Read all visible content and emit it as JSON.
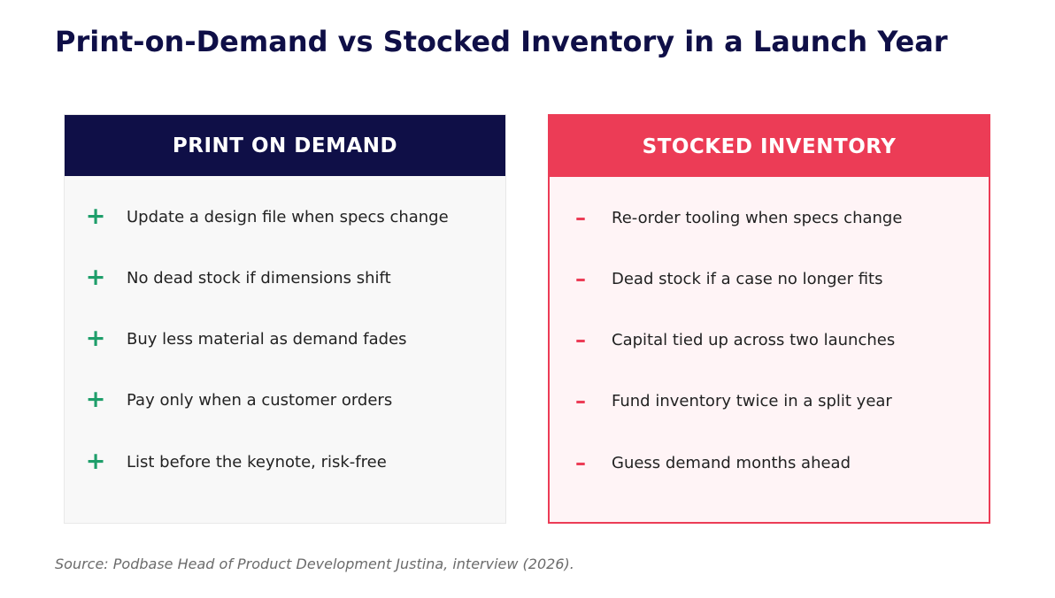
{
  "title": "Print-on-Demand vs Stocked Inventory in a Launch Year",
  "colors": {
    "title": "#0f0f47",
    "left_header": "#0f0f47",
    "right_header": "#ec3c56",
    "plus_marker": "#1e9e6a",
    "minus_marker": "#ec3c56",
    "left_panel_bg": "#f8f8f8",
    "right_panel_bg": "#fff4f6"
  },
  "left_panel": {
    "header": "PRINT ON DEMAND",
    "marker": "+",
    "items": [
      "Update a design file when specs change",
      "No dead stock if dimensions shift",
      "Buy less material as demand fades",
      "Pay only when a customer orders",
      "List before the keynote, risk-free"
    ]
  },
  "right_panel": {
    "header": "STOCKED INVENTORY",
    "marker": "–",
    "items": [
      "Re-order tooling when specs change",
      "Dead stock if a case no longer fits",
      "Capital tied up across two launches",
      "Fund inventory twice in a split year",
      "Guess demand months ahead"
    ]
  },
  "source": "Source: Podbase Head of Product Development Justina, interview (2026)."
}
